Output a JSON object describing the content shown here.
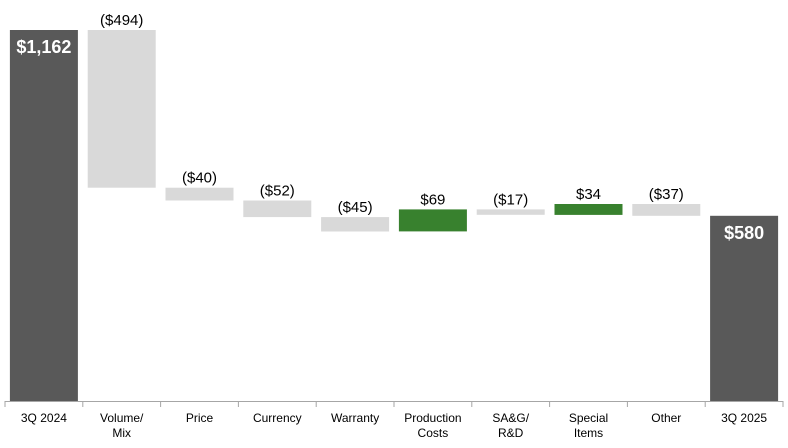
{
  "chart_data": {
    "type": "bar",
    "subtype": "waterfall",
    "title": "",
    "xlabel": "",
    "ylabel": "",
    "grid": false,
    "legend": "none",
    "colors": {
      "total": "#595959",
      "decrease": "#d9d9d9",
      "increase": "#38812e",
      "axis": "#a6a6a6"
    },
    "bars": [
      {
        "category": [
          "3Q 2024"
        ],
        "value": 1162,
        "kind": "total",
        "label": "$1,162"
      },
      {
        "category": [
          "Volume/",
          "Mix"
        ],
        "value": -494,
        "kind": "delta",
        "label": "($494)"
      },
      {
        "category": [
          "Price"
        ],
        "value": -40,
        "kind": "delta",
        "label": "($40)"
      },
      {
        "category": [
          "Currency"
        ],
        "value": -52,
        "kind": "delta",
        "label": "($52)"
      },
      {
        "category": [
          "Warranty"
        ],
        "value": -45,
        "kind": "delta",
        "label": "($45)"
      },
      {
        "category": [
          "Production",
          "Costs"
        ],
        "value": 69,
        "kind": "delta",
        "label": "$69"
      },
      {
        "category": [
          "SA&G/",
          "R&D"
        ],
        "value": -17,
        "kind": "delta",
        "label": "($17)"
      },
      {
        "category": [
          "Special",
          "Items"
        ],
        "value": 34,
        "kind": "delta",
        "label": "$34"
      },
      {
        "category": [
          "Other"
        ],
        "value": -37,
        "kind": "delta",
        "label": "($37)"
      },
      {
        "category": [
          "3Q 2025"
        ],
        "value": 580,
        "kind": "total",
        "label": "$580"
      }
    ]
  }
}
